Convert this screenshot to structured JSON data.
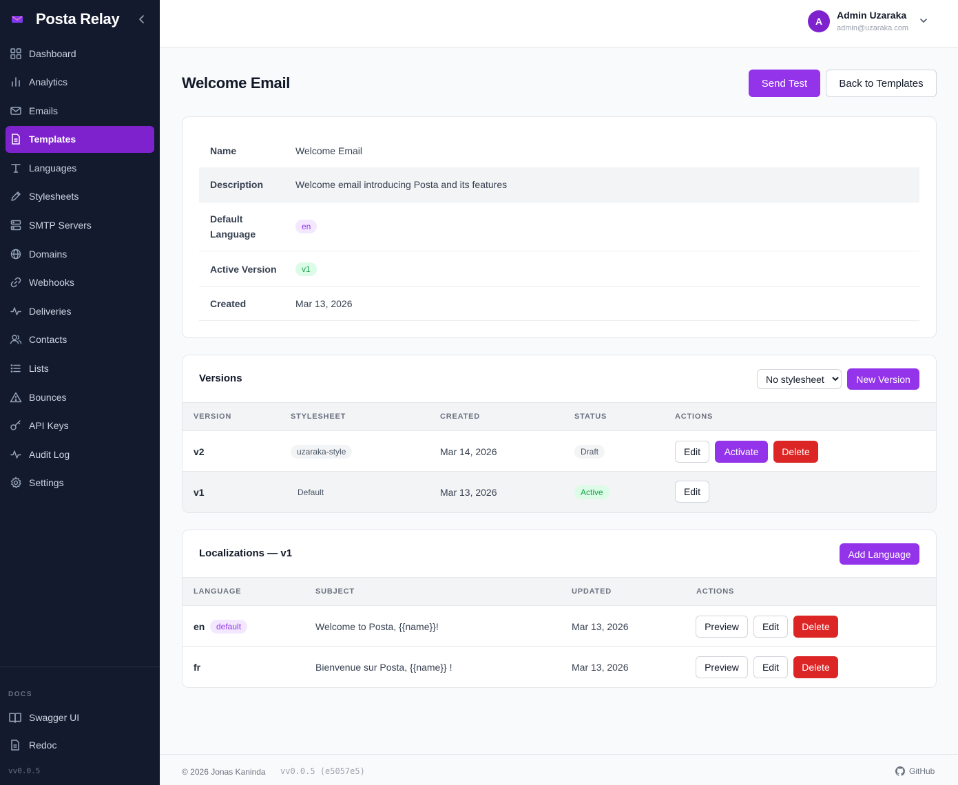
{
  "brand": {
    "title": "Posta Relay"
  },
  "sidebar": {
    "items": [
      {
        "label": "Dashboard",
        "icon": "grid-icon"
      },
      {
        "label": "Analytics",
        "icon": "bar-chart-icon"
      },
      {
        "label": "Emails",
        "icon": "mail-icon"
      },
      {
        "label": "Templates",
        "icon": "file-text-icon",
        "active": true
      },
      {
        "label": "Languages",
        "icon": "type-icon"
      },
      {
        "label": "Stylesheets",
        "icon": "pen-icon"
      },
      {
        "label": "SMTP Servers",
        "icon": "server-icon"
      },
      {
        "label": "Domains",
        "icon": "globe-icon"
      },
      {
        "label": "Webhooks",
        "icon": "link-icon"
      },
      {
        "label": "Deliveries",
        "icon": "activity-icon"
      },
      {
        "label": "Contacts",
        "icon": "users-icon"
      },
      {
        "label": "Lists",
        "icon": "list-icon"
      },
      {
        "label": "Bounces",
        "icon": "alert-triangle-icon"
      },
      {
        "label": "API Keys",
        "icon": "key-icon"
      },
      {
        "label": "Audit Log",
        "icon": "activity-icon"
      },
      {
        "label": "Settings",
        "icon": "gear-icon"
      }
    ],
    "docs_label": "DOCS",
    "docs": [
      {
        "label": "Swagger UI",
        "icon": "book-icon"
      },
      {
        "label": "Redoc",
        "icon": "file-text-icon"
      }
    ],
    "version": "vv0.0.5"
  },
  "header": {
    "avatar_initial": "A",
    "user_name": "Admin Uzaraka",
    "user_email": "admin@uzaraka.com"
  },
  "page": {
    "title": "Welcome Email",
    "send_test": "Send Test",
    "back": "Back to Templates"
  },
  "details": {
    "name_label": "Name",
    "name_value": "Welcome Email",
    "description_label": "Description",
    "description_value": "Welcome email introducing Posta and its features",
    "default_language_label": "Default Language",
    "default_language_value": "en",
    "active_version_label": "Active Version",
    "active_version_value": "v1",
    "created_label": "Created",
    "created_value": "Mar 13, 2026"
  },
  "versions": {
    "title": "Versions",
    "stylesheet_select": "No stylesheet",
    "new_version": "New Version",
    "headers": [
      "VERSION",
      "STYLESHEET",
      "CREATED",
      "STATUS",
      "ACTIONS"
    ],
    "rows": [
      {
        "version": "v2",
        "stylesheet": "uzaraka-style",
        "created": "Mar 14, 2026",
        "status": "Draft",
        "edit": "Edit",
        "activate": "Activate",
        "delete": "Delete"
      },
      {
        "version": "v1",
        "stylesheet": "Default",
        "created": "Mar 13, 2026",
        "status": "Active",
        "edit": "Edit"
      }
    ]
  },
  "localizations": {
    "title": "Localizations — v1",
    "add_language": "Add Language",
    "headers": [
      "LANGUAGE",
      "SUBJECT",
      "UPDATED",
      "ACTIONS"
    ],
    "rows": [
      {
        "language": "en",
        "badge": "default",
        "subject": "Welcome to Posta, {{name}}!",
        "updated": "Mar 13, 2026",
        "preview": "Preview",
        "edit": "Edit",
        "delete": "Delete"
      },
      {
        "language": "fr",
        "subject": "Bienvenue sur Posta, {{name}} !",
        "updated": "Mar 13, 2026",
        "preview": "Preview",
        "edit": "Edit",
        "delete": "Delete"
      }
    ]
  },
  "footer": {
    "copyright": "© 2026 Jonas Kaninda",
    "version": "vv0.0.5 (e5057e5)",
    "github": "GitHub"
  },
  "colors": {
    "sidebar_bg": "#131a2e",
    "accent": "#9333ea",
    "active_nav": "#7e22ce",
    "danger": "#dc2626",
    "success": "#16a34a"
  }
}
